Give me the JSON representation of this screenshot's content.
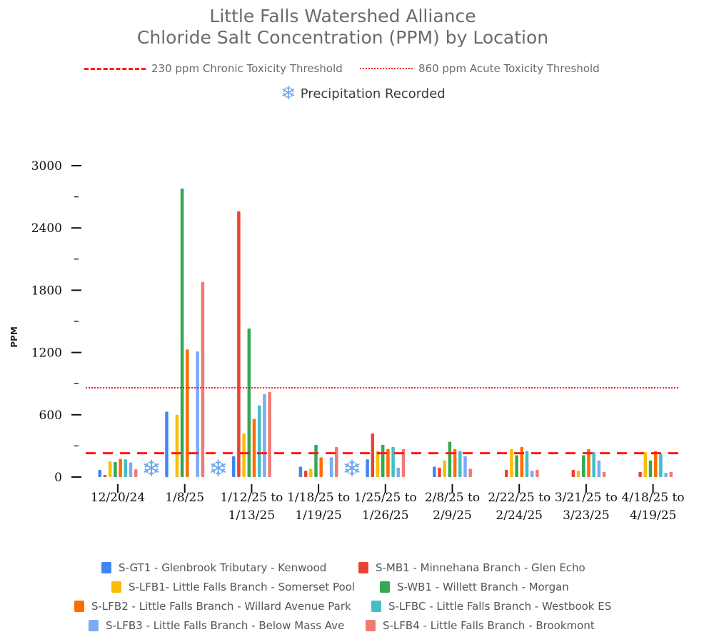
{
  "chart_data": {
    "type": "bar",
    "title": "Little Falls Watershed Alliance",
    "subtitle": "Chloride Salt Concentration (PPM) by Location",
    "ylabel": "PPM",
    "xlabel": "",
    "ylim": [
      0,
      3000
    ],
    "yticks": [
      "0",
      "600",
      "1200",
      "1800",
      "2400",
      "3000"
    ],
    "ytick_values": [
      0,
      600,
      1200,
      1800,
      2400,
      3000
    ],
    "minor_ytick_values": [
      300,
      900,
      1500,
      2100,
      2700
    ],
    "grid": false,
    "categories": [
      "12/20/24",
      "1/8/25",
      "1/12/25 to 1/13/25",
      "1/18/25 to 1/19/25",
      "1/25/25 to 1/26/25",
      "2/8/25 to 2/9/25",
      "2/22/25 to 2/24/25",
      "3/21/25 to 3/23/25",
      "4/18/25 to 4/19/25"
    ],
    "category_lines": [
      [
        "12/20/24"
      ],
      [
        "1/8/25"
      ],
      [
        "1/12/25 to",
        "1/13/25"
      ],
      [
        "1/18/25 to",
        "1/19/25"
      ],
      [
        "1/25/25 to",
        "1/26/25"
      ],
      [
        "2/8/25 to",
        "2/9/25"
      ],
      [
        "2/22/25 to",
        "2/24/25"
      ],
      [
        "3/21/25 to",
        "3/23/25"
      ],
      [
        "4/18/25 to",
        "4/19/25"
      ]
    ],
    "series": [
      {
        "name": "S-GT1 - Glenbrook Tributary - Kenwood",
        "color": "#4285f4",
        "values": [
          70,
          630,
          200,
          100,
          170,
          100,
          null,
          null,
          null
        ]
      },
      {
        "name": "S-MB1 - Minnehana Branch - Glen Echo",
        "color": "#ea4335",
        "values": [
          20,
          null,
          2560,
          60,
          420,
          90,
          70,
          70,
          50
        ]
      },
      {
        "name": "S-LFB1- Little Falls Branch - Somerset Pool",
        "color": "#fbbc04",
        "values": [
          150,
          600,
          420,
          80,
          250,
          160,
          270,
          60,
          240
        ]
      },
      {
        "name": "S-WB1 - Willett Branch - Morgan",
        "color": "#34a853",
        "values": [
          145,
          2780,
          1430,
          310,
          310,
          340,
          210,
          210,
          160
        ]
      },
      {
        "name": "S-LFB2 - Little Falls Branch - Willard Avenue Park",
        "color": "#ff6d01",
        "values": [
          175,
          1230,
          560,
          190,
          270,
          270,
          290,
          270,
          250
        ]
      },
      {
        "name": "S-LFBC - Little Falls Branch - Westbook ES",
        "color": "#46bdc6",
        "values": [
          170,
          null,
          690,
          null,
          290,
          250,
          250,
          240,
          220
        ]
      },
      {
        "name": "S-LFB3 - Little Falls Branch - Below Mass Ave",
        "color": "#7baaf7",
        "values": [
          140,
          1210,
          800,
          190,
          90,
          200,
          60,
          160,
          40
        ]
      },
      {
        "name": "S-LFB4 - Little Falls Branch - Brookmont",
        "color": "#f07b72",
        "values": [
          75,
          1880,
          820,
          290,
          270,
          80,
          70,
          50,
          50
        ]
      }
    ],
    "reference_lines": [
      {
        "label": "230 ppm Chronic Toxicity Threshold",
        "value": 230,
        "style": "dashed",
        "color": "#ff1a1a"
      },
      {
        "label": "860 ppm Acute Toxicity Threshold",
        "value": 860,
        "style": "dotted",
        "color": "#ff1a1a"
      }
    ],
    "precipitation_legend": "Precipitation Recorded",
    "precipitation_marker_after_categories": [
      "12/20/24",
      "1/8/25",
      "1/18/25 to 1/19/25"
    ],
    "legend_position": "bottom"
  },
  "icons": {
    "precipitation": "snowflake-icon",
    "snowflake_glyph": "❄"
  },
  "colors": {
    "title": "#6b6b6b",
    "precip": "#6aa6ee",
    "axis": "#111111"
  }
}
